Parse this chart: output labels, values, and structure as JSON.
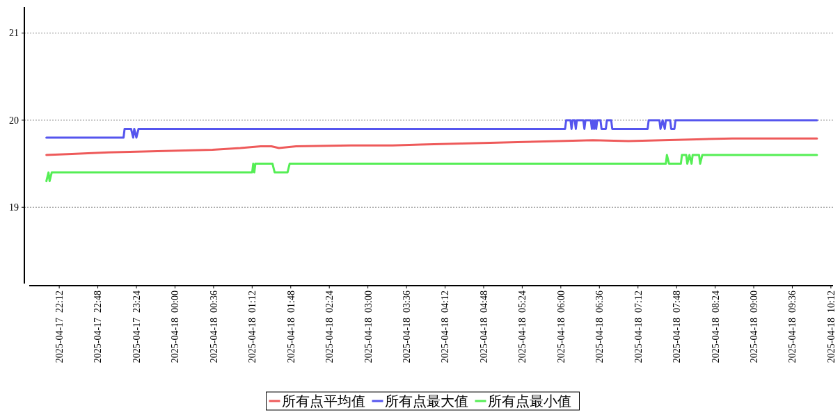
{
  "chart_data": {
    "type": "line",
    "xlim": [
      "2025-04-17T21:44",
      "2025-04-18T10:14"
    ],
    "ylim": [
      18.1,
      21.3
    ],
    "yticks": [
      19,
      20,
      21
    ],
    "xticks": [
      {
        "value": "2025-04-17T22:12",
        "label": "2025-04-17  22:12"
      },
      {
        "value": "2025-04-17T22:48",
        "label": "2025-04-17  22:48"
      },
      {
        "value": "2025-04-17T23:24",
        "label": "2025-04-17  23:24"
      },
      {
        "value": "2025-04-18T00:00",
        "label": "2025-04-18  00:00"
      },
      {
        "value": "2025-04-18T00:36",
        "label": "2025-04-18  00:36"
      },
      {
        "value": "2025-04-18T01:12",
        "label": "2025-04-18  01:12"
      },
      {
        "value": "2025-04-18T01:48",
        "label": "2025-04-18  01:48"
      },
      {
        "value": "2025-04-18T02:24",
        "label": "2025-04-18  02:24"
      },
      {
        "value": "2025-04-18T03:00",
        "label": "2025-04-18  03:00"
      },
      {
        "value": "2025-04-18T03:36",
        "label": "2025-04-18  03:36"
      },
      {
        "value": "2025-04-18T04:12",
        "label": "2025-04-18  04:12"
      },
      {
        "value": "2025-04-18T04:48",
        "label": "2025-04-18  04:48"
      },
      {
        "value": "2025-04-18T05:24",
        "label": "2025-04-18  05:24"
      },
      {
        "value": "2025-04-18T06:00",
        "label": "2025-04-18  06:00"
      },
      {
        "value": "2025-04-18T06:36",
        "label": "2025-04-18  06:36"
      },
      {
        "value": "2025-04-18T07:12",
        "label": "2025-04-18  07:12"
      },
      {
        "value": "2025-04-18T07:48",
        "label": "2025-04-18  07:48"
      },
      {
        "value": "2025-04-18T08:24",
        "label": "2025-04-18  08:24"
      },
      {
        "value": "2025-04-18T09:00",
        "label": "2025-04-18  09:00"
      },
      {
        "value": "2025-04-18T09:36",
        "label": "2025-04-18  09:36"
      },
      {
        "value": "2025-04-18T10:12",
        "label": "2025-04-18  10:12"
      }
    ],
    "grid": "y",
    "legend": "bottom",
    "marker": "none",
    "line_style": "solid",
    "series": [
      {
        "name": "所有点平均值",
        "color": "#ee5a5a",
        "x": [
          "2025-04-17T22:00",
          "2025-04-17T22:20",
          "2025-04-17T22:39",
          "2025-04-17T22:58",
          "2025-04-17T23:31",
          "2025-04-18T00:03",
          "2025-04-18T00:35",
          "2025-04-18T01:01",
          "2025-04-18T01:20",
          "2025-04-18T01:30",
          "2025-04-18T01:37",
          "2025-04-18T01:53",
          "2025-04-18T02:44",
          "2025-04-18T03:23",
          "2025-04-18T03:49",
          "2025-04-18T04:21",
          "2025-04-18T04:54",
          "2025-04-18T05:26",
          "2025-04-18T05:58",
          "2025-04-18T06:30",
          "2025-04-18T07:03",
          "2025-04-18T07:35",
          "2025-04-18T08:07",
          "2025-04-18T08:40",
          "2025-04-18T09:12",
          "2025-04-18T09:31",
          "2025-04-18T09:59"
        ],
        "values": [
          19.6,
          19.61,
          19.62,
          19.63,
          19.64,
          19.65,
          19.66,
          19.68,
          19.7,
          19.7,
          19.68,
          19.7,
          19.71,
          19.71,
          19.72,
          19.73,
          19.74,
          19.75,
          19.76,
          19.77,
          19.76,
          19.77,
          19.78,
          19.79,
          19.79,
          19.79,
          19.79
        ]
      },
      {
        "name": "所有点最大值",
        "color": "#5555ee",
        "x": [
          "2025-04-17T22:00",
          "2025-04-17T23:12",
          "2025-04-17T23:13",
          "2025-04-17T23:19",
          "2025-04-17T23:21",
          "2025-04-17T23:22",
          "2025-04-17T23:24",
          "2025-04-17T23:26",
          "2025-04-17T23:29",
          "2025-04-18T06:04",
          "2025-04-18T06:05",
          "2025-04-18T06:09",
          "2025-04-18T06:10",
          "2025-04-18T06:11",
          "2025-04-18T06:13",
          "2025-04-18T06:14",
          "2025-04-18T06:15",
          "2025-04-18T06:21",
          "2025-04-18T06:22",
          "2025-04-18T06:23",
          "2025-04-18T06:28",
          "2025-04-18T06:29",
          "2025-04-18T06:30",
          "2025-04-18T06:31",
          "2025-04-18T06:32",
          "2025-04-18T06:33",
          "2025-04-18T06:34",
          "2025-04-18T06:37",
          "2025-04-18T06:38",
          "2025-04-18T06:42",
          "2025-04-18T06:43",
          "2025-04-18T06:47",
          "2025-04-18T06:48",
          "2025-04-18T07:21",
          "2025-04-18T07:22",
          "2025-04-18T07:32",
          "2025-04-18T07:33",
          "2025-04-18T07:35",
          "2025-04-18T07:37",
          "2025-04-18T07:38",
          "2025-04-18T07:42",
          "2025-04-18T07:43",
          "2025-04-18T07:46",
          "2025-04-18T07:47",
          "2025-04-18T09:59"
        ],
        "values": [
          19.8,
          19.8,
          19.9,
          19.9,
          19.8,
          19.9,
          19.8,
          19.9,
          19.9,
          19.9,
          20.0,
          20.0,
          19.9,
          20.0,
          20.0,
          19.9,
          20.0,
          20.0,
          19.9,
          20.0,
          20.0,
          19.9,
          20.0,
          19.9,
          20.0,
          19.9,
          20.0,
          20.0,
          19.9,
          19.9,
          20.0,
          20.0,
          19.9,
          19.9,
          20.0,
          20.0,
          19.9,
          20.0,
          19.9,
          20.0,
          20.0,
          19.9,
          19.9,
          20.0,
          20.0
        ]
      },
      {
        "name": "所有点最小值",
        "color": "#55ee55",
        "x": [
          "2025-04-17T22:00",
          "2025-04-17T22:02",
          "2025-04-17T22:03",
          "2025-04-17T22:05",
          "2025-04-18T01:12",
          "2025-04-18T01:13",
          "2025-04-18T01:14",
          "2025-04-18T01:15",
          "2025-04-18T01:31",
          "2025-04-18T01:33",
          "2025-04-18T01:45",
          "2025-04-18T01:47",
          "2025-04-18T07:38",
          "2025-04-18T07:39",
          "2025-04-18T07:41",
          "2025-04-18T07:52",
          "2025-04-18T07:53",
          "2025-04-18T07:57",
          "2025-04-18T07:58",
          "2025-04-18T08:00",
          "2025-04-18T08:02",
          "2025-04-18T08:03",
          "2025-04-18T08:09",
          "2025-04-18T08:10",
          "2025-04-18T08:12",
          "2025-04-18T09:59"
        ],
        "values": [
          19.3,
          19.4,
          19.3,
          19.4,
          19.4,
          19.5,
          19.4,
          19.5,
          19.5,
          19.4,
          19.4,
          19.5,
          19.5,
          19.6,
          19.5,
          19.5,
          19.6,
          19.6,
          19.5,
          19.6,
          19.5,
          19.6,
          19.6,
          19.5,
          19.6,
          19.6
        ]
      }
    ]
  }
}
